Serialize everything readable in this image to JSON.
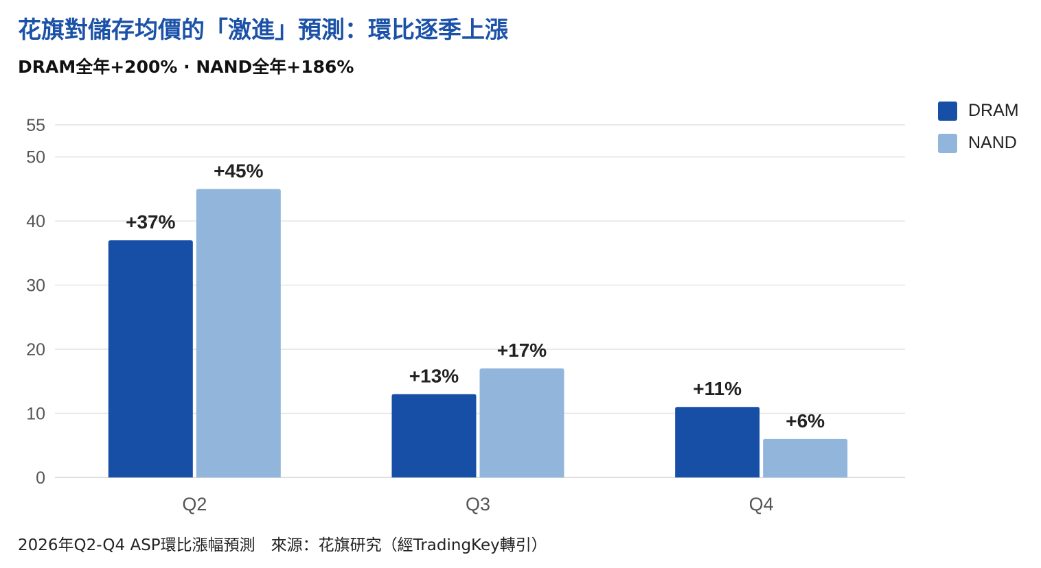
{
  "header": {
    "title": "花旗對儲存均價的「激進」預測：環比逐季上漲",
    "subtitle": "DRAM全年+200% · NAND全年+186%"
  },
  "footnote": "2026年Q2-Q4 ASP環比漲幅預測　來源：花旗研究（經TradingKey轉引）",
  "chart_data": {
    "type": "bar",
    "title": "花旗對儲存均價的「激進」預測：環比逐季上漲",
    "subtitle": "DRAM全年+200% · NAND全年+186%",
    "xlabel": "",
    "ylabel": "",
    "categories": [
      "Q2",
      "Q3",
      "Q4"
    ],
    "series": [
      {
        "name": "DRAM",
        "values": [
          37,
          13,
          11
        ],
        "labels": [
          "+37%",
          "+13%",
          "+11%"
        ],
        "color": "#174ea6"
      },
      {
        "name": "NAND",
        "values": [
          45,
          17,
          6
        ],
        "labels": [
          "+45%",
          "+17%",
          "+6%"
        ],
        "color": "#92b5dc"
      }
    ],
    "yticks": [
      0,
      10,
      20,
      30,
      40,
      50,
      55
    ],
    "ylim": [
      0,
      55
    ],
    "grid": true,
    "legend_position": "top-right"
  }
}
